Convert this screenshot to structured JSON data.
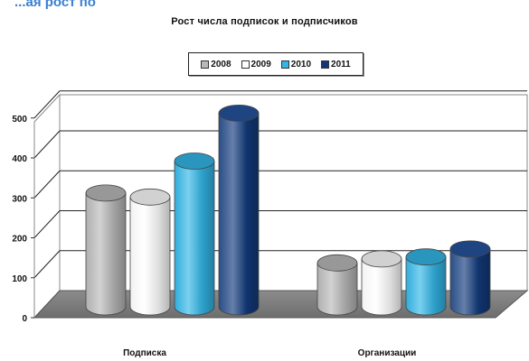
{
  "page": {
    "caption": "...ая рост по"
  },
  "chart_data": {
    "type": "bar",
    "title": "Рост числа подписок и подписчиков",
    "categories": [
      "Подписка",
      "Организации"
    ],
    "series": [
      {
        "name": "2008",
        "values": [
          285,
          110
        ],
        "color": "#b9b9b9"
      },
      {
        "name": "2009",
        "values": [
          275,
          120
        ],
        "color": "#ffffff"
      },
      {
        "name": "2010",
        "values": [
          365,
          125
        ],
        "color": "#33b6e6"
      },
      {
        "name": "2011",
        "values": [
          485,
          145
        ],
        "color": "#123a7a"
      }
    ],
    "ylim": [
      0,
      500
    ],
    "yticks": [
      "0",
      "100",
      "200",
      "300",
      "400",
      "500"
    ],
    "grid": true,
    "legend": "top",
    "style": "3d-cylinder"
  }
}
